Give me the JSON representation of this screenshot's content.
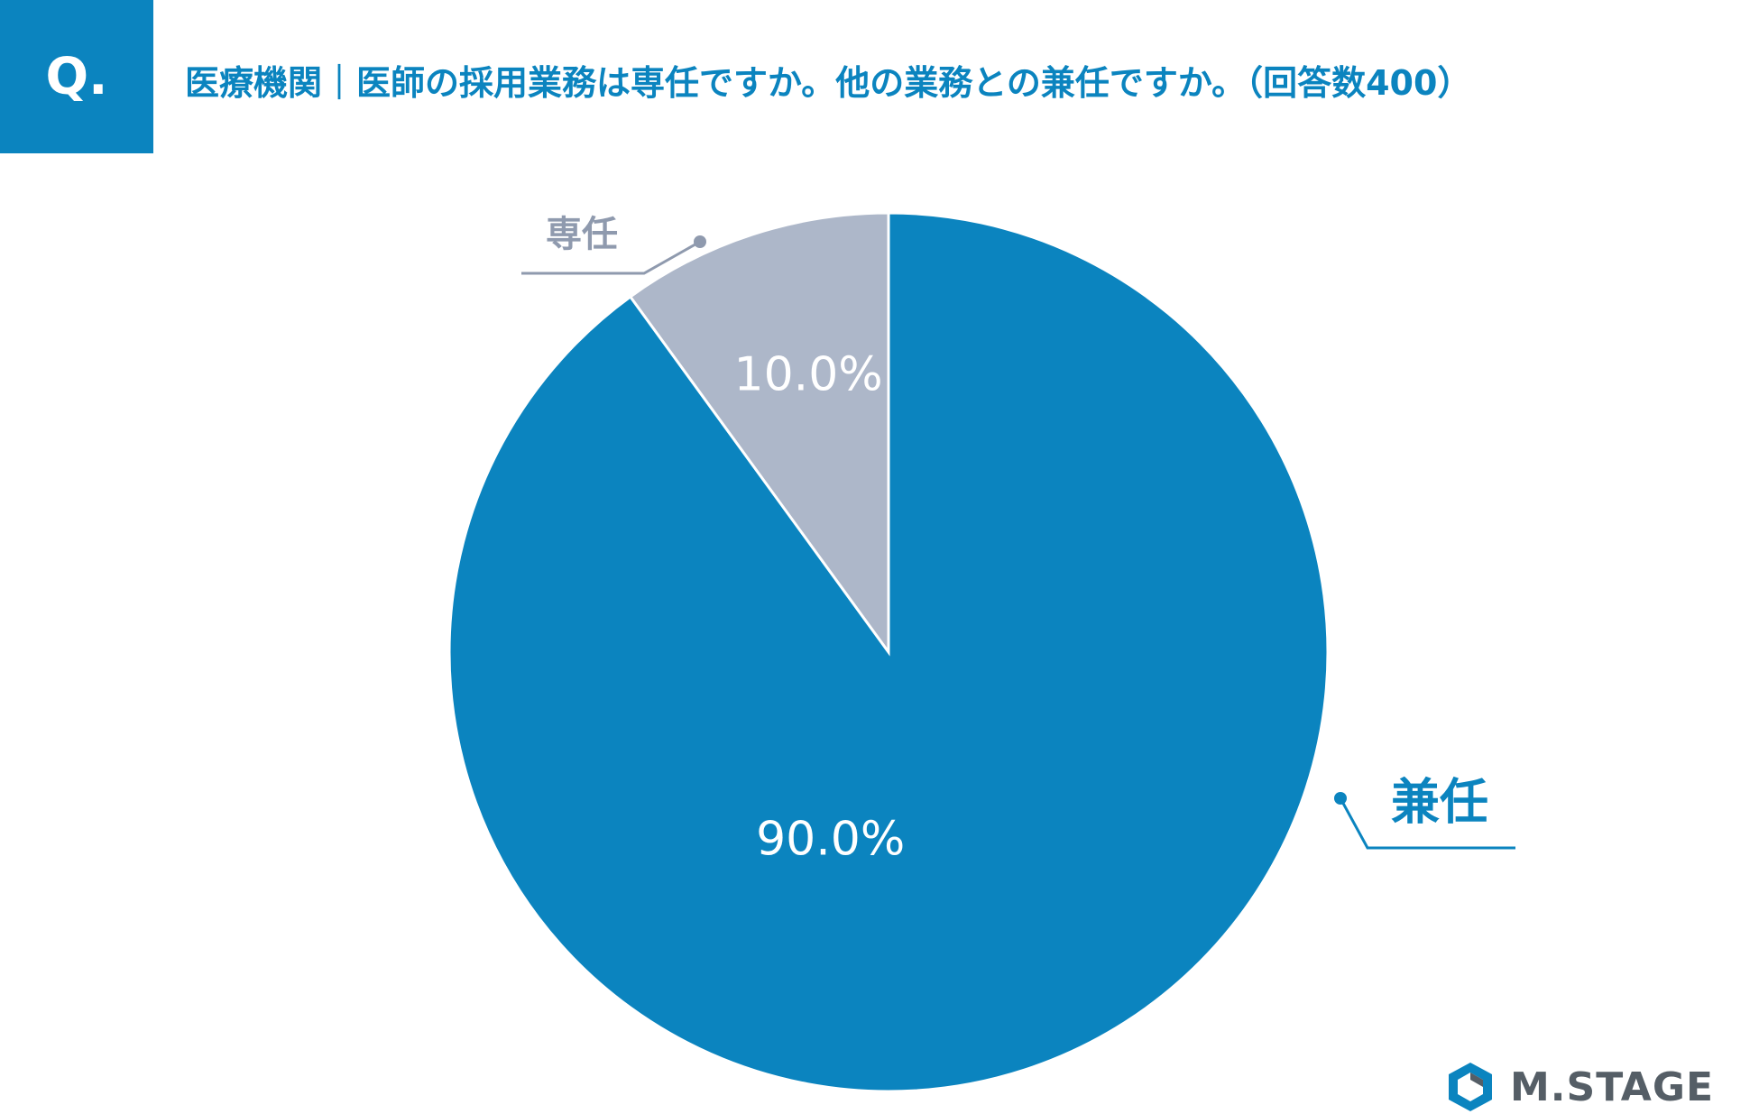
{
  "header": {
    "badge": "Q.",
    "question": "医療機関｜医師の採用業務は専任ですか。他の業務との兼任ですか。（回答数400）"
  },
  "chart_data": {
    "type": "pie",
    "categories": [
      "専任",
      "兼任"
    ],
    "values": [
      10.0,
      90.0
    ],
    "data_labels": [
      "10.0%",
      "90.0%"
    ],
    "colors": [
      "#adb7c9",
      "#0b84bf"
    ],
    "label_colors": [
      "#8f9aae",
      "#0b84bf"
    ],
    "start": "12 o'clock, counter-clockwise for first slice"
  },
  "logo": {
    "text": "M.STAGE",
    "icon": "hexagon-logo-icon",
    "color": "#555e66"
  }
}
